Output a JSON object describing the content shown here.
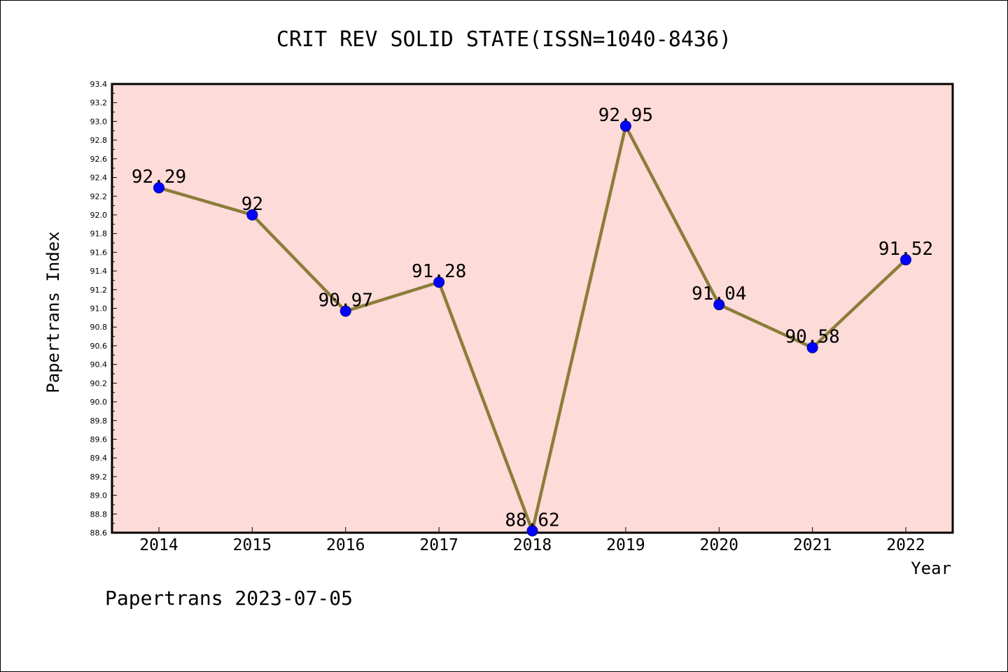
{
  "chart_data": {
    "type": "line",
    "title": "CRIT REV SOLID STATE(ISSN=1040-8436)",
    "xlabel": "Year",
    "ylabel": "Papertrans Index",
    "x": [
      "2014",
      "2015",
      "2016",
      "2017",
      "2018",
      "2019",
      "2020",
      "2021",
      "2022"
    ],
    "series": [
      {
        "values": [
          92.29,
          92,
          90.97,
          91.28,
          88.62,
          92.95,
          91.04,
          90.58,
          91.52
        ],
        "labels": [
          "92.29",
          "92",
          "90.97",
          "91.28",
          "88.62",
          "92.95",
          "91.04",
          "90.58",
          "91.52"
        ]
      }
    ],
    "ylim": [
      88.6,
      93.4
    ],
    "yticks": [
      "88.6",
      "88.8",
      "89.0",
      "89.2",
      "89.4",
      "89.6",
      "89.8",
      "90.0",
      "90.2",
      "90.4",
      "90.6",
      "90.8",
      "91.0",
      "91.2",
      "91.4",
      "91.6",
      "91.8",
      "92.0",
      "92.2",
      "92.4",
      "92.6",
      "92.8",
      "93.0",
      "93.2",
      "93.4"
    ],
    "grid": false,
    "colors": {
      "plot_background": "#fddbd8",
      "line": "#8b7d3a",
      "marker": "#0000ff"
    }
  },
  "footer": "Papertrans 2023-07-05"
}
